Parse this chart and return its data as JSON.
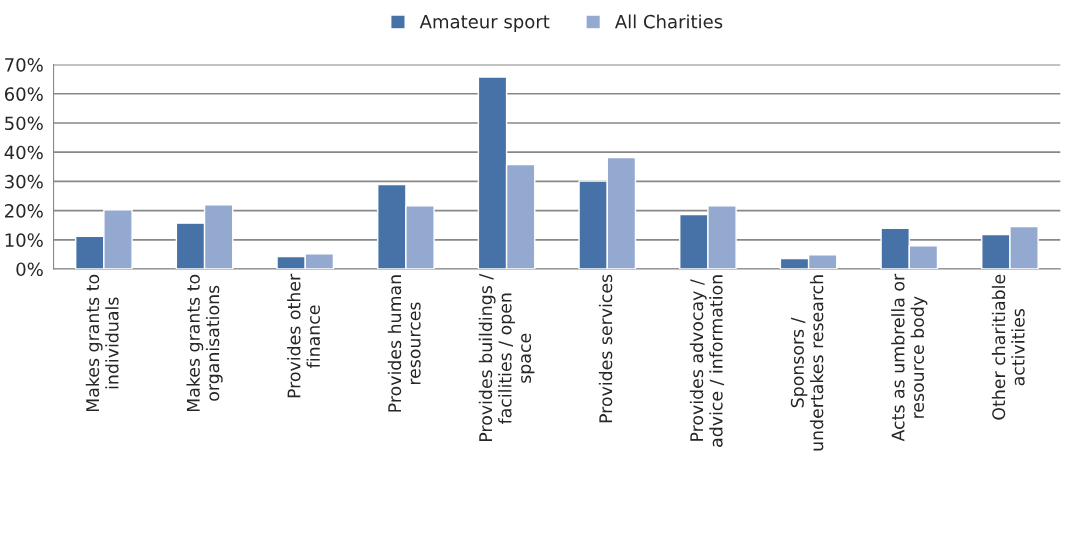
{
  "chart_data": {
    "type": "bar",
    "categories": [
      "Makes grants to\nindividuals",
      "Makes grants to\norganisations",
      "Provides other\nfinance",
      "Provides human\nresources",
      "Provides buildings /\nfacilities / open\nspace",
      "Provides services",
      "Provides advocay /\nadvice / information",
      "Sponsors /\nundertakes research",
      "Acts as umbrella or\nresource body",
      "Other charitiable\nactivities"
    ],
    "series": [
      {
        "name": "Amateur sport",
        "color": "#4672a8",
        "values": [
          11.2,
          15.7,
          4.3,
          28.9,
          65.7,
          30.1,
          18.6,
          3.6,
          13.9,
          11.8
        ]
      },
      {
        "name": "All Charities",
        "color": "#94a9d0",
        "values": [
          20.3,
          22.0,
          5.2,
          21.6,
          35.8,
          38.2,
          21.6,
          4.9,
          7.9,
          14.5
        ]
      }
    ],
    "ylim": [
      0,
      70
    ],
    "yticks": [
      {
        "value": 0,
        "label": "0%"
      },
      {
        "value": 10,
        "label": "10%"
      },
      {
        "value": 20,
        "label": "20%"
      },
      {
        "value": 30,
        "label": "30%"
      },
      {
        "value": 40,
        "label": "40%"
      },
      {
        "value": 50,
        "label": "50%"
      },
      {
        "value": 60,
        "label": "60%"
      },
      {
        "value": 70,
        "label": "70%"
      }
    ],
    "grid": "y",
    "legend": "top"
  }
}
